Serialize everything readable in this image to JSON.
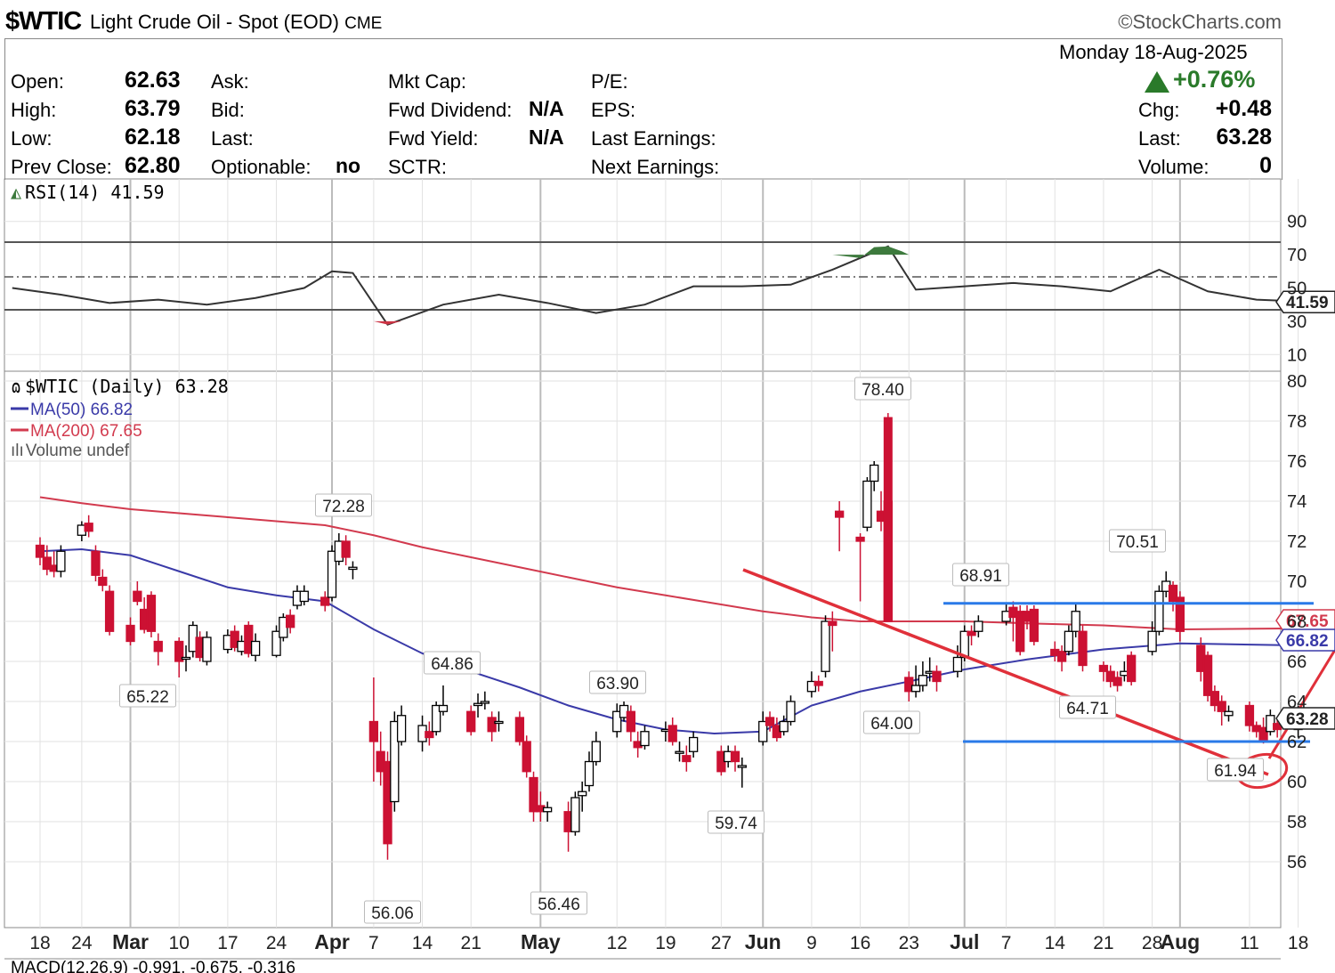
{
  "header": {
    "symbol": "$WTIC",
    "description": "Light Crude Oil - Spot (EOD)",
    "exchange": "CME",
    "logo": "©StockCharts.com",
    "date": "Monday  18-Aug-2025"
  },
  "quote": {
    "open_label": "Open:",
    "open": "62.63",
    "high_label": "High:",
    "high": "63.79",
    "low_label": "Low:",
    "low": "62.18",
    "prev_label": "Prev Close:",
    "prev": "62.80",
    "ask_label": "Ask:",
    "bid_label": "Bid:",
    "last_label": "Last:",
    "optionable_label": "Optionable:",
    "optionable": "no",
    "mktcap_label": "Mkt Cap:",
    "fwd_div_label": "Fwd Dividend:",
    "fwd_div": "N/A",
    "fwd_yield_label": "Fwd Yield:",
    "fwd_yield": "N/A",
    "sctr_label": "SCTR:",
    "pe_label": "P/E:",
    "eps_label": "EPS:",
    "last_earn_label": "Last Earnings:",
    "next_earn_label": "Next Earnings:",
    "pct_change": "+0.76%",
    "chg_label": "Chg:",
    "chg": "+0.48",
    "last2_label": "Last:",
    "last": "63.28",
    "volume_label": "Volume:",
    "volume": "0"
  },
  "rsi_panel": {
    "label": "RSI(14) 41.59",
    "axis_ticks": [
      "90",
      "70",
      "50",
      "30",
      "10"
    ],
    "value_tag": "41.59"
  },
  "price_panel": {
    "legend_main": "$WTIC (Daily) 63.28",
    "legend_ma50": "MA(50) 66.82",
    "legend_ma200": "MA(200) 67.65",
    "legend_volume": "Volume undef",
    "axis_ticks": [
      "80",
      "78",
      "76",
      "74",
      "72",
      "70",
      "68",
      "66",
      "64",
      "62",
      "60",
      "58",
      "56"
    ],
    "tags": {
      "ma200": "67.65",
      "ma50": "66.82",
      "last": "63.28"
    }
  },
  "x_axis": [
    "18",
    "24",
    "Mar",
    "10",
    "17",
    "24",
    "Apr",
    "7",
    "14",
    "21",
    "May",
    "12",
    "19",
    "27",
    "Jun",
    "9",
    "16",
    "23",
    "Jul",
    "7",
    "14",
    "21",
    "28",
    "Aug",
    "11",
    "18"
  ],
  "macd_label": "MACD(12,26,9) -0.991, -0.675, -0.316",
  "colors": {
    "up": "#000000",
    "down": "#cc1133",
    "ma50": "#3a3aa8",
    "ma200": "#d23a4e",
    "annotation_red": "#e0303a",
    "annotation_blue": "#2a7ae8",
    "rsi_fill": "#3d7a3d"
  },
  "chart_data": [
    {
      "type": "line",
      "title": "RSI(14) 41.59",
      "ylim": [
        0,
        100
      ],
      "x": [
        "Feb 14",
        "Feb 21",
        "Feb 28",
        "Mar 7",
        "Mar 14",
        "Mar 21",
        "Mar 28",
        "Apr 1",
        "Apr 4",
        "Apr 9",
        "Apr 17",
        "Apr 25",
        "May 2",
        "May 9",
        "May 16",
        "May 23",
        "May 30",
        "Jun 6",
        "Jun 12",
        "Jun 16",
        "Jun 20",
        "Jun 24",
        "Jul 1",
        "Jul 8",
        "Jul 15",
        "Jul 22",
        "Jul 29",
        "Aug 5",
        "Aug 12",
        "Aug 18"
      ],
      "series": [
        {
          "values": [
            50,
            46,
            41,
            43,
            40,
            44,
            50,
            60,
            59,
            28,
            40,
            46,
            41,
            35,
            40,
            51,
            51,
            52,
            61,
            68,
            75,
            49,
            51,
            53,
            51,
            48,
            61,
            48,
            43,
            42
          ]
        }
      ],
      "reference_lines": [
        70,
        50,
        30
      ]
    },
    {
      "type": "candlestick",
      "title": "$WTIC (Daily) 63.28",
      "ylim": [
        55,
        81
      ],
      "annotations": [
        {
          "x": "Mar 5",
          "label": "65.22"
        },
        {
          "x": "Apr 2",
          "label": "72.28"
        },
        {
          "x": "Apr 8",
          "label": "56.06"
        },
        {
          "x": "Apr 23",
          "label": "64.86"
        },
        {
          "x": "May 5",
          "label": "56.46"
        },
        {
          "x": "May 13",
          "label": "63.90"
        },
        {
          "x": "May 30",
          "label": "59.74"
        },
        {
          "x": "Jun 23",
          "label": "78.40"
        },
        {
          "x": "Jun 24",
          "label": "64.00"
        },
        {
          "x": "Jul 10",
          "label": "68.91"
        },
        {
          "x": "Jul 24",
          "label": "64.71"
        },
        {
          "x": "Jul 31",
          "label": "70.51"
        },
        {
          "x": "Aug 15",
          "label": "61.94"
        }
      ],
      "series": [
        {
          "name": "MA(50) 66.82",
          "values": [
            71.5,
            71.6,
            71.3,
            70.5,
            69.7,
            69.3,
            69.0,
            67.6,
            66.4,
            65.5,
            64.7,
            63.8,
            63.1,
            62.6,
            62.4,
            62.5,
            63.8,
            64.5,
            65.0,
            65.6,
            66.1,
            66.6,
            66.9,
            66.8
          ]
        },
        {
          "name": "MA(200) 67.65",
          "values": [
            74.2,
            73.9,
            73.6,
            73.4,
            73.2,
            73.0,
            72.8,
            72.3,
            71.7,
            71.2,
            70.7,
            70.2,
            69.7,
            69.3,
            68.9,
            68.5,
            68.2,
            68.0,
            68.0,
            68.0,
            67.9,
            67.8,
            67.6,
            67.65
          ]
        }
      ]
    }
  ]
}
